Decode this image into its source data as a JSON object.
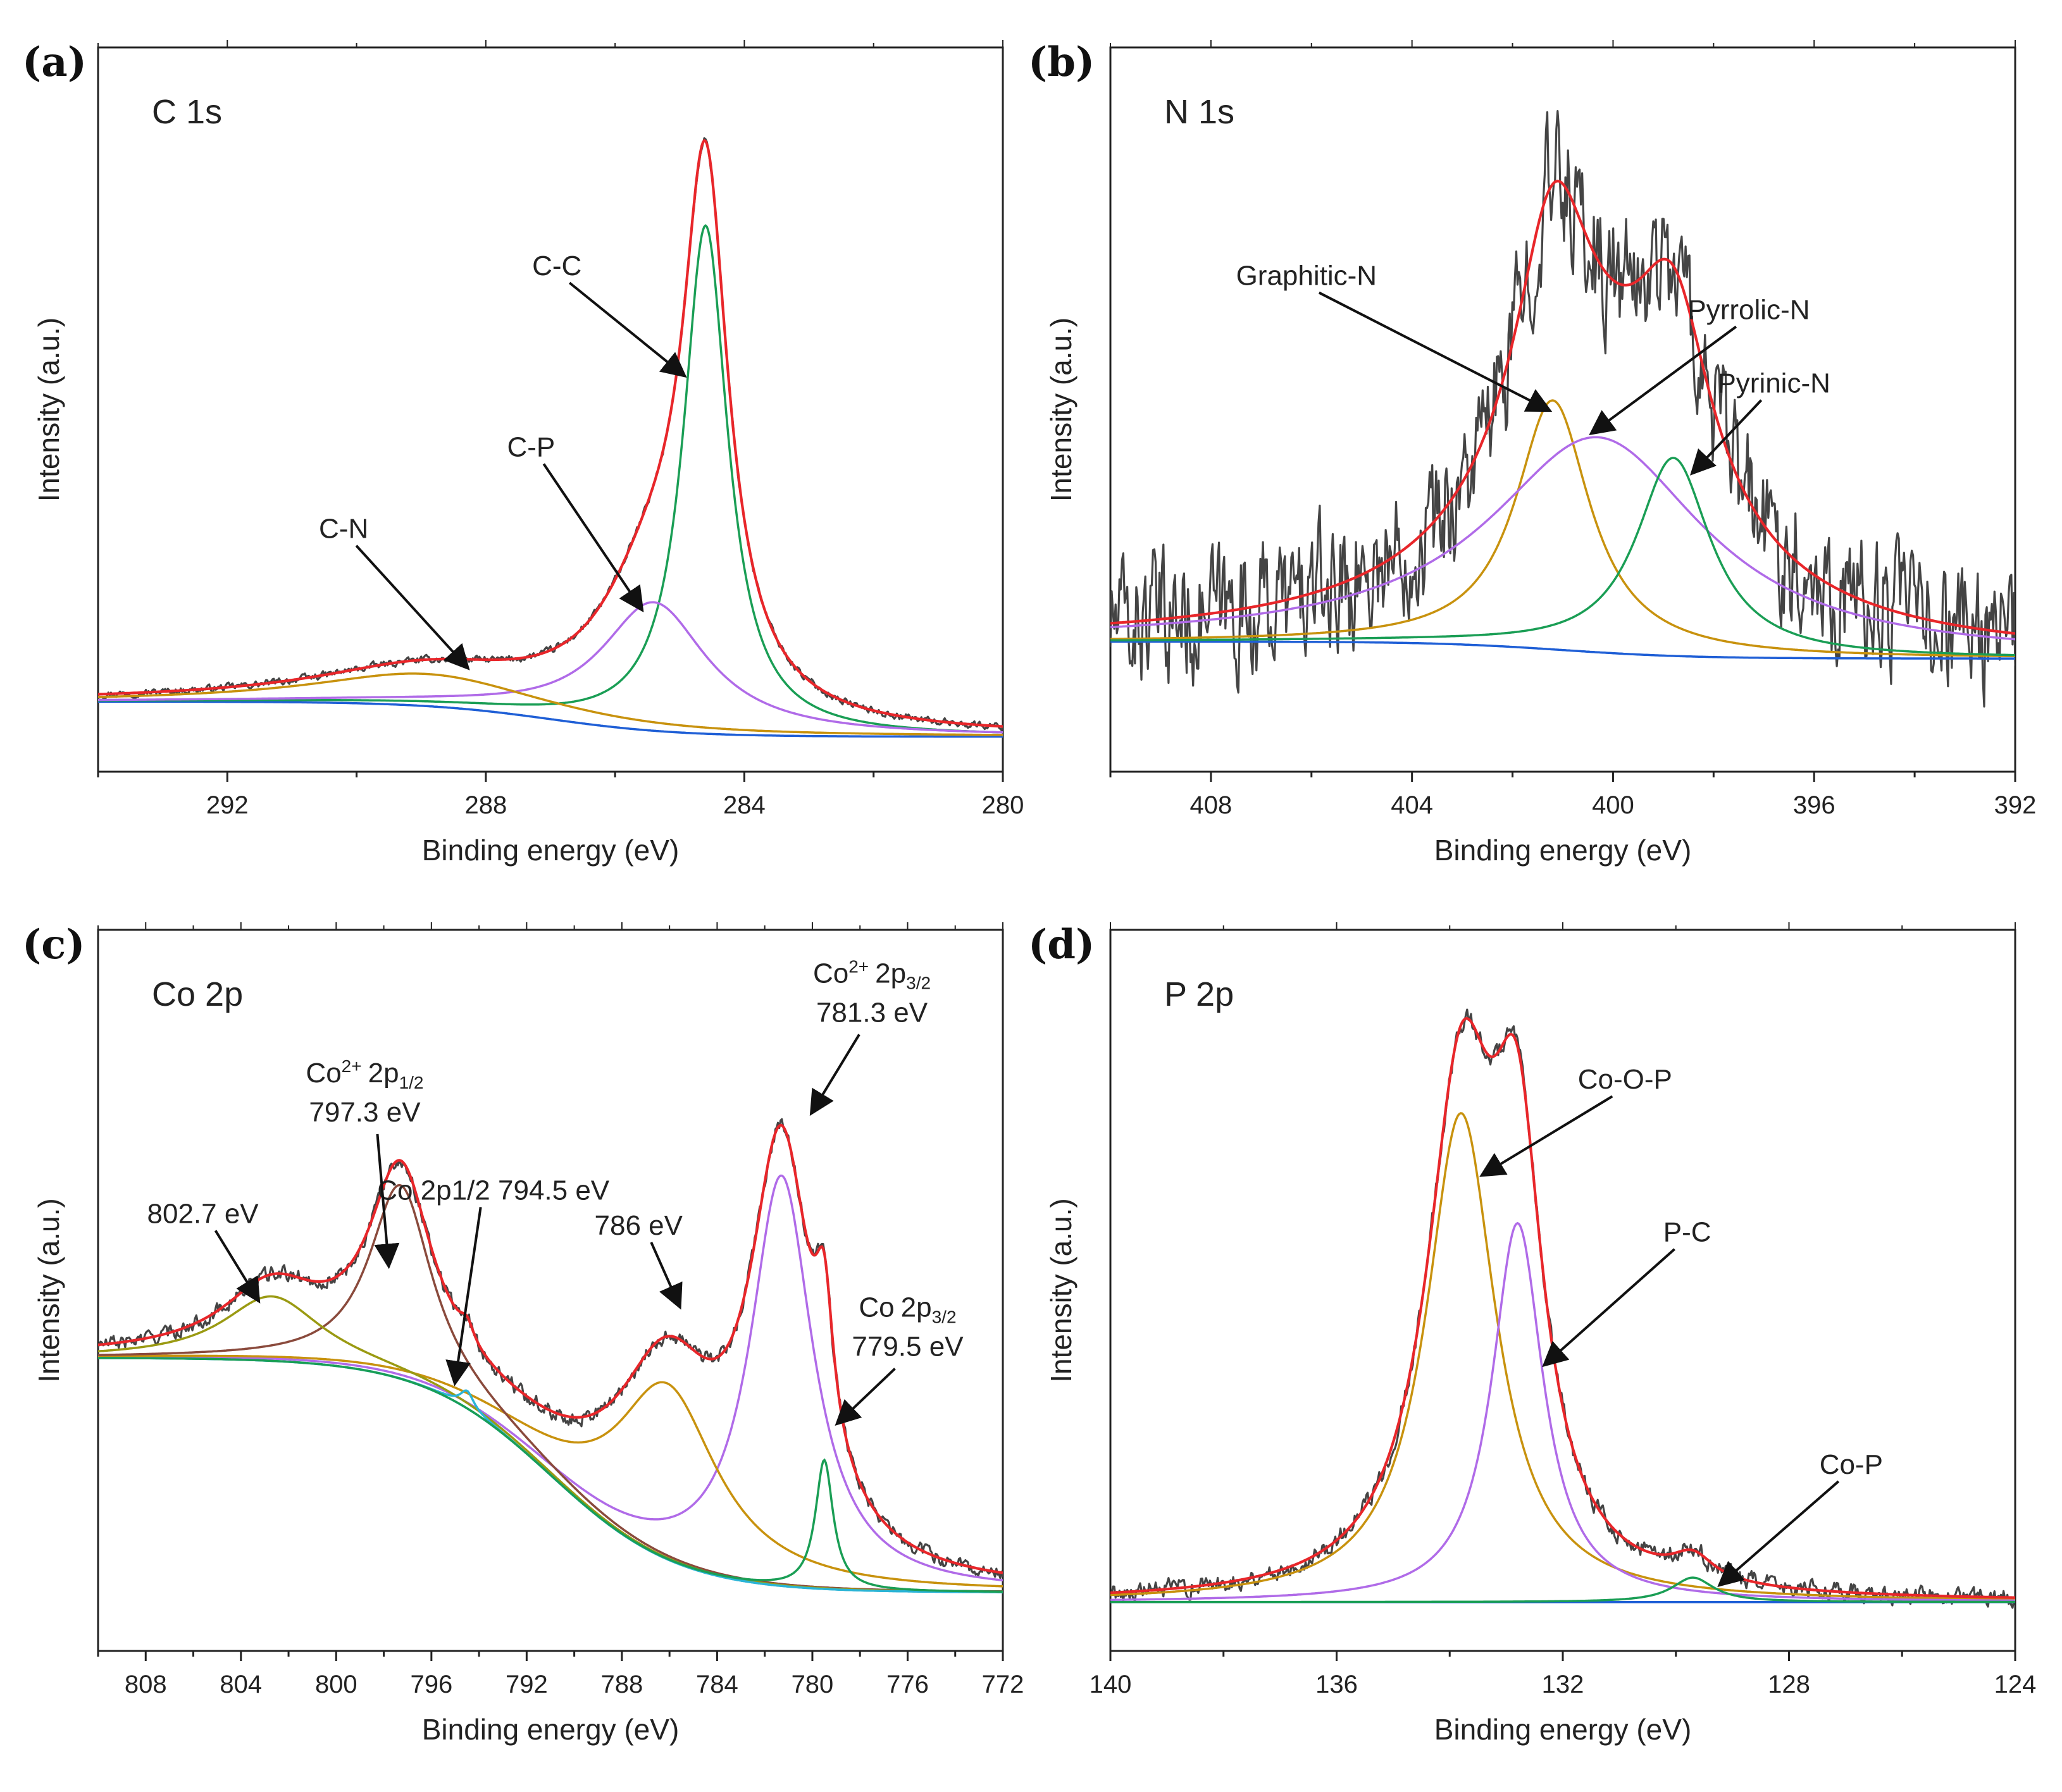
{
  "chart_data": [
    {
      "type": "line",
      "panel": "(a)",
      "title": "C 1s",
      "xlabel": "Binding energy (eV)",
      "ylabel": "Intensity (a.u.)",
      "xlim": [
        294,
        280
      ],
      "xticks": [
        292,
        288,
        284,
        280
      ],
      "ylim": [
        -0.12,
        1.12
      ],
      "background": {
        "name": "Background",
        "color": "#1f5fd6",
        "left": 0.0,
        "right": -0.06
      },
      "peaks": [
        {
          "name": "C-C",
          "center": 284.6,
          "amplitude": 0.87,
          "width": 0.42,
          "color": "#1a9e55"
        },
        {
          "name": "C-P",
          "center": 285.4,
          "amplitude": 0.22,
          "width": 1.0,
          "color": "#b06be8"
        },
        {
          "name": "C-N",
          "center": 288.9,
          "amplitude": 0.055,
          "width": 2.1,
          "color": "#c8920e"
        }
      ],
      "noise": 0.006,
      "envelope_color": "#e8262a",
      "raw_color": "#444444",
      "annotations": [
        {
          "label": "C-C",
          "text_x": 286.9,
          "text_y": 0.73,
          "tip_x": 284.95,
          "tip_y": 0.56
        },
        {
          "label": "C-P",
          "text_x": 287.3,
          "text_y": 0.42,
          "tip_x": 285.6,
          "tip_y": 0.16
        },
        {
          "label": "C-N",
          "text_x": 290.2,
          "text_y": 0.28,
          "tip_x": 288.3,
          "tip_y": 0.06
        }
      ]
    },
    {
      "type": "line",
      "panel": "(b)",
      "title": "N 1s",
      "xlabel": "Binding energy (eV)",
      "ylabel": "Intensity (a.u.)",
      "xlim": [
        410,
        392
      ],
      "xticks": [
        408,
        404,
        400,
        396,
        392
      ],
      "ylim": [
        -0.23,
        1.05
      ],
      "background": {
        "name": "Background",
        "color": "#1f5fd6",
        "left": 0.0,
        "right": -0.03
      },
      "peaks": [
        {
          "name": "Graphitic-N",
          "center": 401.2,
          "amplitude": 0.44,
          "width": 0.9,
          "color": "#c8920e"
        },
        {
          "name": "Pyrrolic-N",
          "center": 400.3,
          "amplitude": 0.38,
          "width": 2.6,
          "color": "#b06be8"
        },
        {
          "name": "Pyrinic-N",
          "center": 398.8,
          "amplitude": 0.35,
          "width": 0.9,
          "color": "#1a9e55"
        }
      ],
      "noise": 0.11,
      "envelope_color": "#e8262a",
      "raw_color": "#444444",
      "annotations": [
        {
          "label": "Graphitic-N",
          "text_x": 406.1,
          "text_y": 0.63,
          "tip_x": 401.3,
          "tip_y": 0.41
        },
        {
          "label": "Pyrrolic-N",
          "text_x": 397.3,
          "text_y": 0.57,
          "tip_x": 400.4,
          "tip_y": 0.37
        },
        {
          "label": "Pyrinic-N",
          "text_x": 396.8,
          "text_y": 0.44,
          "tip_x": 398.4,
          "tip_y": 0.3
        }
      ]
    },
    {
      "type": "line",
      "panel": "(c)",
      "title": "Co 2p",
      "xlabel": "Binding energy (eV)",
      "ylabel": "Intensity (a.u.)",
      "xlim": [
        810,
        772
      ],
      "xticks": [
        808,
        804,
        800,
        796,
        792,
        788,
        784,
        780,
        776,
        772
      ],
      "ylim": [
        -0.1,
        1.13
      ],
      "background": {
        "name": "Background",
        "color": "#2ab4d6",
        "left": 0.4,
        "right": 0.0
      },
      "peaks": [
        {
          "name": "Co2+ 2p3/2 781.3 eV",
          "center": 781.3,
          "amplitude": 0.7,
          "width": 1.6,
          "color": "#b06be8"
        },
        {
          "name": "786 eV",
          "center": 786.1,
          "amplitude": 0.3,
          "width": 2.6,
          "color": "#c8920e"
        },
        {
          "name": "Co2+ 2p1/2 797.3 eV",
          "center": 797.3,
          "amplitude": 0.33,
          "width": 1.6,
          "color": "#8a4a3c"
        },
        {
          "name": "802.7 eV",
          "center": 802.7,
          "amplitude": 0.11,
          "width": 2.5,
          "color": "#9a9a12"
        },
        {
          "name": "Co 2p1/2 794.5 eV",
          "center": 794.5,
          "amplitude": 0.03,
          "width": 0.35,
          "color": "#2ab4d6"
        },
        {
          "name": "Co 2p3/2 779.5 eV",
          "center": 779.5,
          "amplitude": 0.22,
          "width": 0.45,
          "color": "#1a9e55"
        }
      ],
      "noise": 0.012,
      "envelope_color": "#e8262a",
      "raw_color": "#444444",
      "annotations": [
        {
          "label": "802.7 eV",
          "text_x": 805.6,
          "text_y": 0.63,
          "tip_x": 803.3,
          "tip_y": 0.5
        },
        {
          "label": "786 eV",
          "text_x": 787.3,
          "text_y": 0.61,
          "tip_x": 785.6,
          "tip_y": 0.49
        },
        {
          "label": "Co 2p1/2 794.5 eV",
          "text_x": 793.4,
          "text_y": 0.67,
          "tip_x": 795.0,
          "tip_y": 0.36
        }
      ],
      "stacked_labels": [
        {
          "main": "Co",
          "sup": "2+",
          "sub": "2p",
          "subscript": "1/2",
          "value": "797.3 eV",
          "text_x": 798.8,
          "text_y": 0.87,
          "tip_x": 797.8,
          "tip_y": 0.56
        },
        {
          "main": "Co",
          "sup": "2+",
          "sub": "2p",
          "subscript": "3/2",
          "value": "781.3 eV",
          "text_x": 777.5,
          "text_y": 1.04,
          "tip_x": 780.0,
          "tip_y": 0.82
        },
        {
          "main": "Co",
          "sup": "",
          "sub": "2p",
          "subscript": "3/2",
          "value": "779.5 eV",
          "text_x": 776.0,
          "text_y": 0.47,
          "tip_x": 778.9,
          "tip_y": 0.29
        }
      ],
      "stacked_label_texts": [
        "Co2+ 2p1/2",
        "Co2+ 2p3/2",
        "Co 2p3/2",
        "Co 2p1/2"
      ]
    },
    {
      "type": "line",
      "panel": "(d)",
      "title": "P 2p",
      "xlabel": "Binding energy (eV)",
      "ylabel": "Intensity (a.u.)",
      "xlim": [
        140,
        124
      ],
      "xticks": [
        140,
        136,
        132,
        128,
        124
      ],
      "ylim": [
        -0.08,
        1.1
      ],
      "background": {
        "name": "Background",
        "color": "#1f5fd6",
        "left": 0.0,
        "right": 0.0
      },
      "peaks": [
        {
          "name": "Co-O-P",
          "center": 133.8,
          "amplitude": 0.8,
          "width": 0.75,
          "color": "#c8920e"
        },
        {
          "name": "P-C",
          "center": 132.8,
          "amplitude": 0.62,
          "width": 0.55,
          "color": "#b06be8"
        },
        {
          "name": "Co-P",
          "center": 129.7,
          "amplitude": 0.04,
          "width": 0.45,
          "color": "#1a9e55"
        }
      ],
      "noise": 0.015,
      "envelope_color": "#e8262a",
      "raw_color": "#444444",
      "annotations": [
        {
          "label": "Co-O-P",
          "text_x": 130.9,
          "text_y": 0.84,
          "tip_x": 133.4,
          "tip_y": 0.7
        },
        {
          "label": "P-C",
          "text_x": 129.8,
          "text_y": 0.59,
          "tip_x": 132.3,
          "tip_y": 0.39
        },
        {
          "label": "Co-P",
          "text_x": 126.9,
          "text_y": 0.21,
          "tip_x": 129.2,
          "tip_y": 0.03
        }
      ]
    }
  ]
}
